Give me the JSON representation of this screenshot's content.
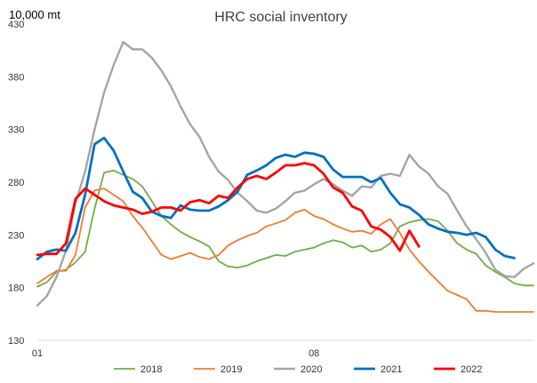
{
  "chart_data": {
    "type": "line",
    "title": "HRC social inventory",
    "unit_label": "10,000 mt",
    "xlabel": "",
    "ylabel": "",
    "ylim": [
      130,
      430
    ],
    "yticks": [
      130,
      180,
      230,
      280,
      330,
      380,
      430
    ],
    "xlim": [
      1,
      53
    ],
    "xticks": [
      {
        "week": 1,
        "label": "01"
      },
      {
        "week": 30,
        "label": "08"
      }
    ],
    "grid": false,
    "legend_position": "bottom",
    "series": [
      {
        "name": "2018",
        "color": "#70ad47",
        "width": 1.8,
        "x": [
          1,
          2,
          3,
          4,
          5,
          6,
          7,
          8,
          9,
          10,
          11,
          12,
          13,
          14,
          15,
          16,
          17,
          18,
          19,
          20,
          21,
          22,
          23,
          24,
          25,
          26,
          27,
          28,
          29,
          30,
          31,
          32,
          33,
          34,
          35,
          36,
          37,
          38,
          39,
          40,
          41,
          42,
          43,
          44,
          45,
          46,
          47,
          48,
          49,
          50,
          51,
          52,
          53
        ],
        "values": [
          181,
          185,
          195,
          197,
          204,
          214,
          255,
          289,
          291,
          287,
          283,
          276,
          262,
          248,
          240,
          233,
          228,
          224,
          219,
          205,
          200,
          199,
          201,
          205,
          208,
          211,
          210,
          214,
          216,
          218,
          222,
          225,
          223,
          218,
          220,
          214,
          216,
          222,
          238,
          242,
          244,
          245,
          243,
          234,
          222,
          216,
          212,
          201,
          195,
          190,
          184,
          182,
          182
        ]
      },
      {
        "name": "2019",
        "color": "#ed7d31",
        "width": 1.8,
        "x": [
          1,
          2,
          3,
          4,
          5,
          6,
          7,
          8,
          9,
          10,
          11,
          12,
          13,
          14,
          15,
          16,
          17,
          18,
          19,
          20,
          21,
          22,
          23,
          24,
          25,
          26,
          27,
          28,
          29,
          30,
          31,
          32,
          33,
          34,
          35,
          36,
          37,
          38,
          39,
          40,
          41,
          42,
          43,
          44,
          45,
          46,
          47,
          48,
          49,
          50,
          51,
          52,
          53
        ],
        "values": [
          184,
          190,
          196,
          196,
          211,
          256,
          272,
          274,
          268,
          262,
          248,
          237,
          224,
          211,
          207,
          210,
          213,
          209,
          207,
          211,
          220,
          225,
          229,
          232,
          238,
          241,
          244,
          251,
          254,
          248,
          245,
          240,
          236,
          233,
          234,
          231,
          240,
          245,
          232,
          216,
          205,
          195,
          186,
          177,
          173,
          169,
          158,
          158,
          157,
          157,
          157,
          157,
          157
        ]
      },
      {
        "name": "2020",
        "color": "#a5a5a5",
        "width": 2.4,
        "x": [
          1,
          2,
          3,
          4,
          5,
          6,
          7,
          8,
          9,
          10,
          11,
          12,
          13,
          14,
          15,
          16,
          17,
          18,
          19,
          20,
          21,
          22,
          23,
          24,
          25,
          26,
          27,
          28,
          29,
          30,
          31,
          32,
          33,
          34,
          35,
          36,
          37,
          38,
          39,
          40,
          41,
          42,
          43,
          44,
          45,
          46,
          47,
          48,
          49,
          50,
          51,
          52,
          53
        ],
        "values": [
          163,
          172,
          190,
          215,
          260,
          290,
          330,
          365,
          391,
          413,
          406,
          406,
          398,
          386,
          371,
          352,
          335,
          323,
          304,
          290,
          282,
          270,
          262,
          253,
          251,
          255,
          262,
          270,
          272,
          278,
          283,
          278,
          272,
          267,
          276,
          275,
          286,
          288,
          286,
          306,
          295,
          288,
          276,
          269,
          253,
          238,
          226,
          213,
          197,
          191,
          190,
          198,
          203
        ]
      },
      {
        "name": "2021",
        "color": "#0070c0",
        "width": 2.8,
        "x": [
          1,
          2,
          3,
          4,
          5,
          6,
          7,
          8,
          9,
          10,
          11,
          12,
          13,
          14,
          15,
          16,
          17,
          18,
          19,
          20,
          21,
          22,
          23,
          24,
          25,
          26,
          27,
          28,
          29,
          30,
          31,
          32,
          33,
          34,
          35,
          36,
          37,
          38,
          39,
          40,
          41,
          42,
          43,
          44,
          45,
          46,
          47,
          48,
          49,
          50,
          51
        ],
        "values": [
          207,
          214,
          216,
          215,
          232,
          268,
          316,
          322,
          310,
          290,
          271,
          265,
          252,
          248,
          246,
          258,
          254,
          253,
          253,
          257,
          263,
          271,
          287,
          291,
          296,
          303,
          306,
          304,
          308,
          307,
          304,
          292,
          285,
          285,
          285,
          280,
          284,
          270,
          259,
          256,
          249,
          240,
          236,
          233,
          232,
          230,
          232,
          228,
          216,
          210,
          208
        ]
      },
      {
        "name": "2022",
        "color": "#ff0000",
        "width": 2.8,
        "x": [
          1,
          2,
          3,
          4,
          5,
          6,
          7,
          8,
          9,
          10,
          11,
          12,
          13,
          14,
          15,
          16,
          17,
          18,
          19,
          20,
          21,
          22,
          23,
          24,
          25,
          26,
          27,
          28,
          29,
          30,
          31,
          32,
          33,
          34,
          35,
          36,
          37,
          38,
          39,
          40,
          41
        ],
        "values": [
          211,
          212,
          212,
          222,
          264,
          274,
          268,
          262,
          258,
          256,
          254,
          250,
          252,
          256,
          256,
          253,
          261,
          263,
          260,
          267,
          265,
          275,
          283,
          286,
          283,
          289,
          296,
          296,
          298,
          296,
          288,
          275,
          270,
          257,
          253,
          238,
          235,
          228,
          215,
          234,
          219
        ]
      }
    ]
  }
}
